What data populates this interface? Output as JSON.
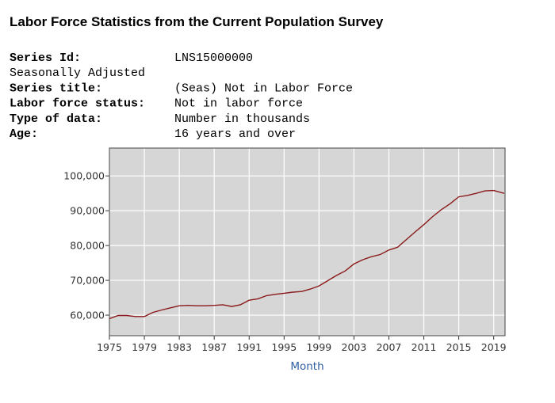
{
  "header": {
    "title": "Labor Force Statistics from the Current Population Survey"
  },
  "series_info": [
    {
      "label": "Series Id:",
      "value": "LNS15000000"
    },
    {
      "label": "Seasonally Adjusted"
    },
    {
      "label": "Series title:",
      "value": "(Seas) Not in Labor Force"
    },
    {
      "label": "Labor force status:",
      "value": "Not in labor force"
    },
    {
      "label": "Type of data:",
      "value": "Number in thousands"
    },
    {
      "label": "Age:",
      "value": "16 years and over"
    }
  ],
  "chart_data": {
    "type": "line",
    "x_label": "Month",
    "color": "#8b1a1a",
    "grid": true,
    "x": [
      1975,
      1976,
      1977,
      1978,
      1979,
      1980,
      1981,
      1982,
      1983,
      1984,
      1985,
      1986,
      1987,
      1988,
      1989,
      1990,
      1991,
      1992,
      1993,
      1994,
      1995,
      1996,
      1997,
      1998,
      1999,
      2000,
      2001,
      2002,
      2003,
      2004,
      2005,
      2006,
      2007,
      2008,
      2009,
      2010,
      2011,
      2012,
      2013,
      2014,
      2015,
      2016,
      2017,
      2018,
      2019,
      2020.2
    ],
    "values": [
      59000,
      59900,
      59900,
      59600,
      59600,
      60800,
      61500,
      62100,
      62700,
      62800,
      62700,
      62700,
      62800,
      63000,
      62500,
      63000,
      64300,
      64700,
      65600,
      66000,
      66300,
      66600,
      66800,
      67500,
      68400,
      69900,
      71400,
      72700,
      74700,
      75900,
      76800,
      77400,
      78700,
      79500,
      81700,
      83900,
      86000,
      88300,
      90300,
      92000,
      94000,
      94400,
      95000,
      95700,
      95800,
      95000
    ],
    "xlim": [
      1975,
      2020.3
    ],
    "xticks": [
      1975,
      1979,
      1983,
      1987,
      1991,
      1995,
      1999,
      2003,
      2007,
      2011,
      2015,
      2019
    ],
    "ylim": [
      54100,
      108000
    ],
    "yticks": [
      {
        "value": 60000,
        "label": "60,000"
      },
      {
        "value": 70000,
        "label": "70,000"
      },
      {
        "value": 80000,
        "label": "80,000"
      },
      {
        "value": 90000,
        "label": "90,000"
      },
      {
        "value": 100000,
        "label": "100,000"
      }
    ]
  }
}
